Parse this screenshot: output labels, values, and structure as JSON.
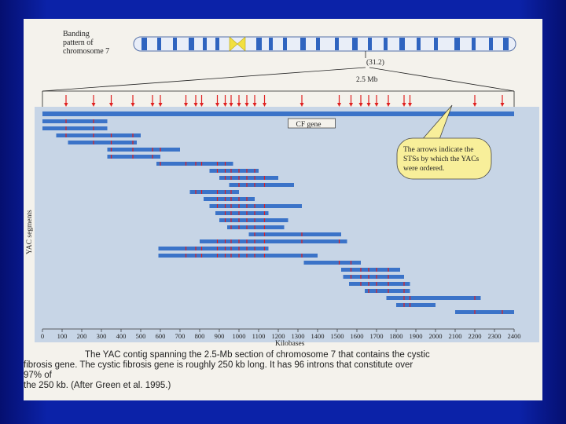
{
  "chromosome": {
    "label_lines": [
      "Banding",
      "pattern of",
      "chromosome 7"
    ],
    "band_label": "(31.2)",
    "region_label": "2.5 Mb"
  },
  "gene": {
    "label": "CF gene",
    "start_kb": 1250,
    "end_kb": 1500
  },
  "callout": {
    "lines": [
      "The arrows indicate the",
      "STSs by which the YACs",
      "were ordered."
    ]
  },
  "chart_data": {
    "type": "diagram",
    "title": "YAC contig spanning the 2.5-Mb section of chromosome 7",
    "xlabel": "Kilobases",
    "ylabel": "YAC segments",
    "xlim": [
      0,
      2400
    ],
    "xticks": [
      0,
      100,
      200,
      300,
      400,
      500,
      600,
      700,
      800,
      900,
      1000,
      1100,
      1200,
      1300,
      1400,
      1500,
      1600,
      1700,
      1800,
      1900,
      2000,
      2100,
      2200,
      2300,
      2400
    ],
    "sts_kb": [
      120,
      260,
      350,
      460,
      560,
      600,
      730,
      780,
      810,
      890,
      930,
      960,
      1000,
      1040,
      1080,
      1130,
      1320,
      1510,
      1570,
      1620,
      1660,
      1700,
      1760,
      1840,
      1870,
      2200,
      2340
    ],
    "contig": {
      "start_kb": 0,
      "end_kb": 2400
    },
    "segments": [
      {
        "row": 0,
        "start": 0,
        "end": 330
      },
      {
        "row": 1,
        "start": 0,
        "end": 330
      },
      {
        "row": 2,
        "start": 70,
        "end": 500
      },
      {
        "row": 3,
        "start": 130,
        "end": 480
      },
      {
        "row": 4,
        "start": 330,
        "end": 700
      },
      {
        "row": 5,
        "start": 330,
        "end": 600
      },
      {
        "row": 6,
        "start": 580,
        "end": 970
      },
      {
        "row": 7,
        "start": 850,
        "end": 1100
      },
      {
        "row": 8,
        "start": 900,
        "end": 1200
      },
      {
        "row": 9,
        "start": 950,
        "end": 1280
      },
      {
        "row": 10,
        "start": 750,
        "end": 1000
      },
      {
        "row": 11,
        "start": 820,
        "end": 1080
      },
      {
        "row": 12,
        "start": 850,
        "end": 1320
      },
      {
        "row": 13,
        "start": 880,
        "end": 1150
      },
      {
        "row": 14,
        "start": 900,
        "end": 1250
      },
      {
        "row": 15,
        "start": 940,
        "end": 1230
      },
      {
        "row": 16,
        "start": 1050,
        "end": 1520
      },
      {
        "row": 17,
        "start": 800,
        "end": 1550
      },
      {
        "row": 18,
        "start": 590,
        "end": 1150
      },
      {
        "row": 19,
        "start": 590,
        "end": 1400
      },
      {
        "row": 20,
        "start": 1330,
        "end": 1620
      },
      {
        "row": 21,
        "start": 1520,
        "end": 1820
      },
      {
        "row": 22,
        "start": 1530,
        "end": 1840
      },
      {
        "row": 23,
        "start": 1560,
        "end": 1870
      },
      {
        "row": 24,
        "start": 1640,
        "end": 1870
      },
      {
        "row": 25,
        "start": 1750,
        "end": 2230
      },
      {
        "row": 26,
        "start": 1800,
        "end": 2000
      },
      {
        "row": 27,
        "start": 2100,
        "end": 2400
      }
    ]
  },
  "caption": {
    "lines": [
      "The YAC contig spanning the 2.5-Mb section of chromosome 7 that contains the cystic",
      "fibrosis gene. The cystic fibrosis gene is roughly 250 kb long. It has 96 introns that constitute over 97% of",
      "the 250 kb. (After Green et al. 1995.)"
    ]
  },
  "colors": {
    "bar": "#3b73c8",
    "arrow": "#e02020",
    "chart_bg": "#c7d5e6",
    "callout": "#f8ef9a"
  }
}
